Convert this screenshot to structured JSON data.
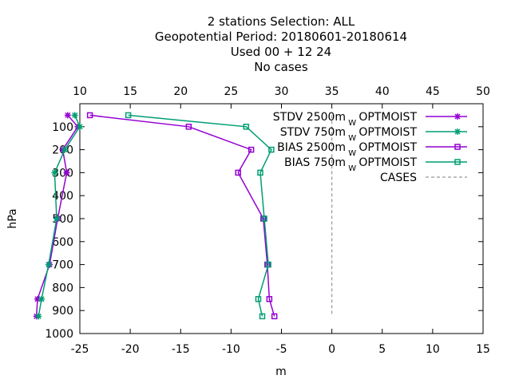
{
  "chart_data": {
    "type": "line",
    "title_lines": [
      "2 stations Selection: ALL",
      "Geopotential  Period: 20180601-20180614",
      "Used  00 + 12 24",
      "No cases"
    ],
    "xlabel": "m",
    "ylabel": "hPa",
    "x_bottom": {
      "range": [
        -25,
        15
      ],
      "ticks": [
        -25,
        -20,
        -15,
        -10,
        -5,
        0,
        5,
        10,
        15
      ]
    },
    "x_top": {
      "range": [
        10,
        50
      ],
      "ticks": [
        10,
        15,
        20,
        25,
        30,
        35,
        40,
        45,
        50
      ]
    },
    "y": {
      "range": [
        0,
        1000
      ],
      "reversed": true,
      "ticks": [
        100,
        200,
        300,
        400,
        500,
        600,
        700,
        800,
        900,
        1000
      ]
    },
    "grid": false,
    "legend_position": "top-right",
    "levels": [
      50,
      100,
      200,
      300,
      500,
      700,
      850,
      925
    ],
    "series": [
      {
        "name": "STDV 2500m",
        "name_sub": "W",
        "name_suffix": "OPTMOIST",
        "color": "#9400d3",
        "marker": "star",
        "values": [
          8.8,
          9.8,
          8.3,
          8.7,
          7.8,
          7.0,
          5.8,
          5.7
        ]
      },
      {
        "name": "STDV 750m",
        "name_sub": "W",
        "name_suffix": "OPTMOIST",
        "color": "#009e73",
        "marker": "star",
        "values": [
          9.5,
          10.0,
          8.5,
          7.5,
          7.7,
          6.9,
          6.2,
          5.9
        ]
      },
      {
        "name": "BIAS 2500m",
        "name_sub": "W",
        "name_suffix": "OPTMOIST",
        "color": "#9400d3",
        "marker": "square",
        "values": [
          -24.0,
          -14.2,
          -8.0,
          -9.3,
          -6.8,
          -6.4,
          -6.2,
          -5.7
        ]
      },
      {
        "name": "BIAS 750m",
        "name_sub": "W",
        "name_suffix": "OPTMOIST",
        "color": "#009e73",
        "marker": "square",
        "values": [
          -20.2,
          -8.5,
          -6.0,
          -7.1,
          -6.7,
          -6.3,
          -7.3,
          -6.9
        ]
      },
      {
        "name": "CASES",
        "color": "#999999",
        "dash": true,
        "marker": "none",
        "values": [
          0,
          0,
          0,
          0,
          0,
          0,
          0,
          0
        ]
      }
    ]
  }
}
